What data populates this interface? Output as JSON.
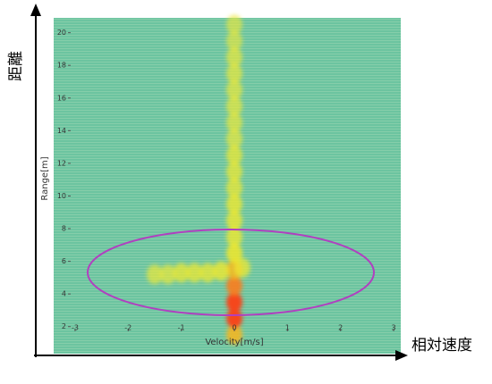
{
  "chart_data": {
    "type": "heatmap",
    "x_label": "Velocity[m/s]",
    "y_label": "Range[m]",
    "outer_y_label": "距離",
    "outer_x_label": "相対速度",
    "xlim": [
      -3.1,
      3.1
    ],
    "xticks": [
      -3,
      -2,
      -1,
      0,
      1,
      2,
      3
    ],
    "ylim": [
      1,
      20.8
    ],
    "yticks": [
      2,
      4,
      6,
      8,
      10,
      12,
      14,
      16,
      18,
      20
    ],
    "x": [
      0,
      0,
      0,
      0,
      0,
      0,
      0,
      0,
      0,
      0,
      0,
      0,
      0,
      0,
      0,
      0,
      0,
      0,
      0,
      0,
      -1.5,
      -1.25,
      -1,
      -0.75,
      -0.5,
      -0.25,
      0.15
    ],
    "y": [
      1.5,
      2.5,
      3.5,
      4.5,
      5.5,
      6.5,
      7.5,
      8.5,
      9.5,
      10.5,
      11.5,
      12.5,
      13.5,
      14.5,
      15.5,
      16.5,
      17.5,
      18.5,
      19.5,
      20.5,
      5.2,
      5.2,
      5.3,
      5.3,
      5.3,
      5.4,
      5.6
    ],
    "values": [
      0.8,
      1,
      1,
      0.9,
      0.8,
      0.7,
      0.6,
      0.6,
      0.6,
      0.5,
      0.5,
      0.5,
      0.4,
      0.4,
      0.4,
      0.4,
      0.4,
      0.4,
      0.3,
      0.3,
      0.4,
      0.4,
      0.5,
      0.5,
      0.5,
      0.6,
      0.5
    ]
  }
}
